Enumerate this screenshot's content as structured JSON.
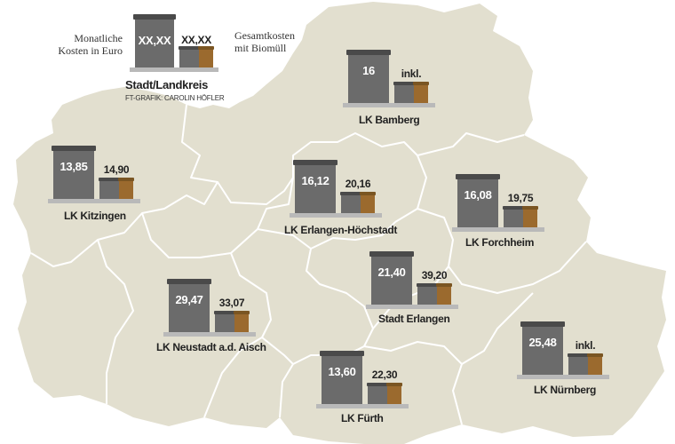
{
  "legend": {
    "left_label": [
      "Monatliche",
      "Kosten in Euro"
    ],
    "right_label": [
      "Gesamtkosten",
      "mit Biomüll"
    ],
    "big_value": "XX,XX",
    "small_value": "XX,XX",
    "title": "Stadt/Landkreis",
    "credit": "FT-GRAFIK: CAROLIN HÖFLER"
  },
  "regions": [
    {
      "id": "bamberg",
      "name": "LK Bamberg",
      "monthly": "16",
      "total": "inkl."
    },
    {
      "id": "kitzingen",
      "name": "LK Kitzingen",
      "monthly": "13,85",
      "total": "14,90"
    },
    {
      "id": "erlangen-hoechstadt",
      "name": "LK Erlangen-Höchstadt",
      "monthly": "16,12",
      "total": "20,16"
    },
    {
      "id": "forchheim",
      "name": "LK Forchheim",
      "monthly": "16,08",
      "total": "19,75"
    },
    {
      "id": "stadt-erlangen",
      "name": "Stadt Erlangen",
      "monthly": "21,40",
      "total": "39,20"
    },
    {
      "id": "neustadt",
      "name": "LK Neustadt a.d. Aisch",
      "monthly": "29,47",
      "total": "33,07"
    },
    {
      "id": "nuernberg",
      "name": "LK Nürnberg",
      "monthly": "25,48",
      "total": "inkl."
    },
    {
      "id": "fuerth",
      "name": "LK Fürth",
      "monthly": "13,60",
      "total": "22,30"
    }
  ],
  "colors": {
    "land": "#e2dfcf",
    "border": "#ffffff",
    "bin_grey": "#6b6b6b",
    "bin_brown": "#9b6a2e"
  }
}
